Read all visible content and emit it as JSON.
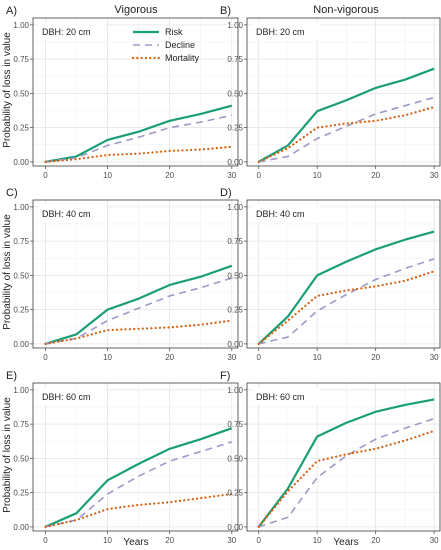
{
  "figure": {
    "column_titles": [
      "Vigorous",
      "Non-vigorous"
    ],
    "ylabel": "Probability of loss in value",
    "xlabel": "Years",
    "legend": [
      {
        "name": "Risk",
        "color": "#1a9e77",
        "style": "solid"
      },
      {
        "name": "Decline",
        "color": "#9d9ac8",
        "style": "dashed"
      },
      {
        "name": "Mortality",
        "color": "#d95f0e",
        "style": "dotted"
      }
    ]
  },
  "chart_data": [
    {
      "type": "line",
      "panel": "A)",
      "column": "Vigorous",
      "annotation": "DBH: 20 cm",
      "x": [
        0,
        5,
        10,
        15,
        20,
        25,
        30
      ],
      "xlim": [
        -2,
        31
      ],
      "ylim": [
        -0.03,
        1.05
      ],
      "xticks": [
        0,
        10,
        20,
        30
      ],
      "yticks": [
        0.0,
        0.25,
        0.5,
        0.75,
        1.0
      ],
      "series": [
        {
          "name": "Risk",
          "values": [
            0.0,
            0.04,
            0.16,
            0.22,
            0.3,
            0.35,
            0.41
          ]
        },
        {
          "name": "Decline",
          "values": [
            0.0,
            0.03,
            0.12,
            0.18,
            0.25,
            0.29,
            0.34
          ]
        },
        {
          "name": "Mortality",
          "values": [
            0.0,
            0.02,
            0.05,
            0.06,
            0.08,
            0.09,
            0.11
          ]
        }
      ]
    },
    {
      "type": "line",
      "panel": "B)",
      "column": "Non-vigorous",
      "annotation": "DBH: 20 cm",
      "x": [
        0,
        5,
        10,
        15,
        20,
        25,
        30
      ],
      "xlim": [
        -2,
        31
      ],
      "ylim": [
        -0.03,
        1.05
      ],
      "xticks": [
        0,
        10,
        20,
        30
      ],
      "yticks": [
        0.0,
        0.25,
        0.5,
        0.75,
        1.0
      ],
      "series": [
        {
          "name": "Risk",
          "values": [
            0.0,
            0.12,
            0.37,
            0.45,
            0.54,
            0.6,
            0.68
          ]
        },
        {
          "name": "Decline",
          "values": [
            0.0,
            0.04,
            0.17,
            0.26,
            0.35,
            0.41,
            0.47
          ]
        },
        {
          "name": "Mortality",
          "values": [
            0.0,
            0.1,
            0.25,
            0.28,
            0.3,
            0.34,
            0.4
          ]
        }
      ]
    },
    {
      "type": "line",
      "panel": "C)",
      "column": "Vigorous",
      "annotation": "DBH: 40 cm",
      "x": [
        0,
        5,
        10,
        15,
        20,
        25,
        30
      ],
      "xlim": [
        -2,
        31
      ],
      "ylim": [
        -0.03,
        1.05
      ],
      "xticks": [
        0,
        10,
        20,
        30
      ],
      "yticks": [
        0.0,
        0.25,
        0.5,
        0.75,
        1.0
      ],
      "series": [
        {
          "name": "Risk",
          "values": [
            0.0,
            0.07,
            0.25,
            0.33,
            0.43,
            0.49,
            0.57
          ]
        },
        {
          "name": "Decline",
          "values": [
            0.0,
            0.04,
            0.17,
            0.26,
            0.35,
            0.41,
            0.48
          ]
        },
        {
          "name": "Mortality",
          "values": [
            0.0,
            0.04,
            0.1,
            0.11,
            0.12,
            0.14,
            0.17
          ]
        }
      ]
    },
    {
      "type": "line",
      "panel": "D)",
      "column": "Non-vigorous",
      "annotation": "DBH: 40 cm",
      "x": [
        0,
        5,
        10,
        15,
        20,
        25,
        30
      ],
      "xlim": [
        -2,
        31
      ],
      "ylim": [
        -0.03,
        1.05
      ],
      "xticks": [
        0,
        10,
        20,
        30
      ],
      "yticks": [
        0.0,
        0.25,
        0.5,
        0.75,
        1.0
      ],
      "series": [
        {
          "name": "Risk",
          "values": [
            0.0,
            0.2,
            0.5,
            0.6,
            0.69,
            0.76,
            0.82
          ]
        },
        {
          "name": "Decline",
          "values": [
            0.0,
            0.05,
            0.24,
            0.36,
            0.47,
            0.55,
            0.62
          ]
        },
        {
          "name": "Mortality",
          "values": [
            0.0,
            0.17,
            0.35,
            0.39,
            0.42,
            0.46,
            0.53
          ]
        }
      ]
    },
    {
      "type": "line",
      "panel": "E)",
      "column": "Vigorous",
      "annotation": "DBH: 60 cm",
      "x": [
        0,
        5,
        10,
        15,
        20,
        25,
        30
      ],
      "xlim": [
        -2,
        31
      ],
      "ylim": [
        -0.03,
        1.05
      ],
      "xticks": [
        0,
        10,
        20,
        30
      ],
      "yticks": [
        0.0,
        0.25,
        0.5,
        0.75,
        1.0
      ],
      "series": [
        {
          "name": "Risk",
          "values": [
            0.0,
            0.1,
            0.34,
            0.46,
            0.57,
            0.64,
            0.72
          ]
        },
        {
          "name": "Decline",
          "values": [
            0.0,
            0.05,
            0.24,
            0.37,
            0.48,
            0.55,
            0.62
          ]
        },
        {
          "name": "Mortality",
          "values": [
            0.0,
            0.05,
            0.13,
            0.16,
            0.18,
            0.21,
            0.24
          ]
        }
      ]
    },
    {
      "type": "line",
      "panel": "F)",
      "column": "Non-vigorous",
      "annotation": "DBH: 60 cm",
      "x": [
        0,
        5,
        10,
        15,
        20,
        25,
        30
      ],
      "xlim": [
        -2,
        31
      ],
      "ylim": [
        -0.03,
        1.05
      ],
      "xticks": [
        0,
        10,
        20,
        30
      ],
      "yticks": [
        0.0,
        0.25,
        0.5,
        0.75,
        1.0
      ],
      "series": [
        {
          "name": "Risk",
          "values": [
            0.0,
            0.28,
            0.66,
            0.76,
            0.84,
            0.89,
            0.93
          ]
        },
        {
          "name": "Decline",
          "values": [
            0.0,
            0.07,
            0.36,
            0.52,
            0.64,
            0.72,
            0.79
          ]
        },
        {
          "name": "Mortality",
          "values": [
            0.0,
            0.26,
            0.48,
            0.53,
            0.57,
            0.63,
            0.7
          ]
        }
      ]
    }
  ]
}
